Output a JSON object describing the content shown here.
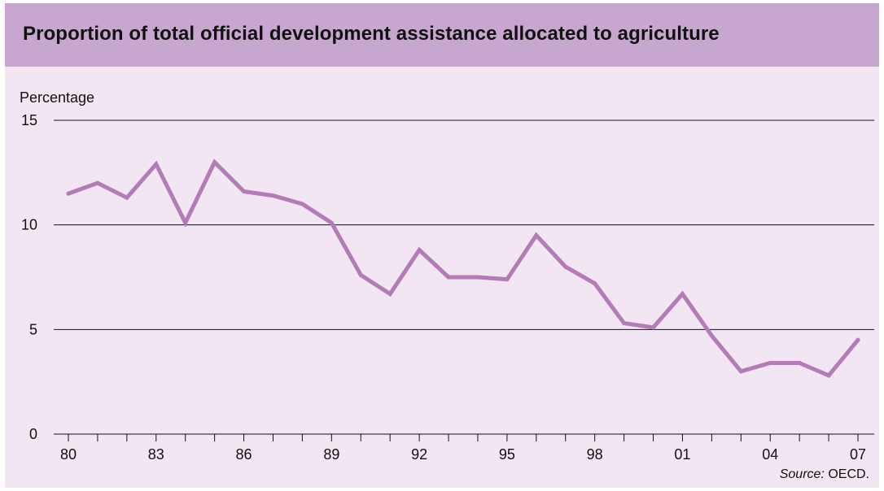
{
  "colors": {
    "header_band": "#c7a6cf",
    "plot_background": "#f1e6f1",
    "line": "#b57ab8",
    "gridline": "#111111"
  },
  "chart_data": {
    "type": "line",
    "title": "Proportion of total official development assistance allocated to agriculture",
    "ylabel": "Percentage",
    "xlabel": "",
    "ylim": [
      0,
      15
    ],
    "y_ticks": [
      "0",
      "5",
      "10",
      "15"
    ],
    "x_tick_labels": [
      "80",
      "83",
      "86",
      "89",
      "92",
      "95",
      "98",
      "01",
      "04",
      "07"
    ],
    "x_tick_years": [
      1980,
      1983,
      1986,
      1989,
      1992,
      1995,
      1998,
      2001,
      2004,
      2007
    ],
    "x_range": [
      1980,
      2007
    ],
    "grid": "horizontal",
    "series": [
      {
        "x": [
          1980,
          1981,
          1982,
          1983,
          1984,
          1985,
          1986,
          1987,
          1988,
          1989,
          1990,
          1991,
          1992,
          1993,
          1994,
          1995,
          1996,
          1997,
          1998,
          1999,
          2000,
          2001,
          2002,
          2003,
          2004,
          2005,
          2006,
          2007
        ],
        "values": [
          11.5,
          12.0,
          11.3,
          12.9,
          10.1,
          13.0,
          11.6,
          11.4,
          11.0,
          10.1,
          7.6,
          6.7,
          8.8,
          7.5,
          7.5,
          7.4,
          9.5,
          8.0,
          7.2,
          5.3,
          5.1,
          6.7,
          4.7,
          3.0,
          3.4,
          3.4,
          2.8,
          4.5
        ]
      }
    ],
    "source_label": "Source:",
    "source_value": "OECD."
  }
}
